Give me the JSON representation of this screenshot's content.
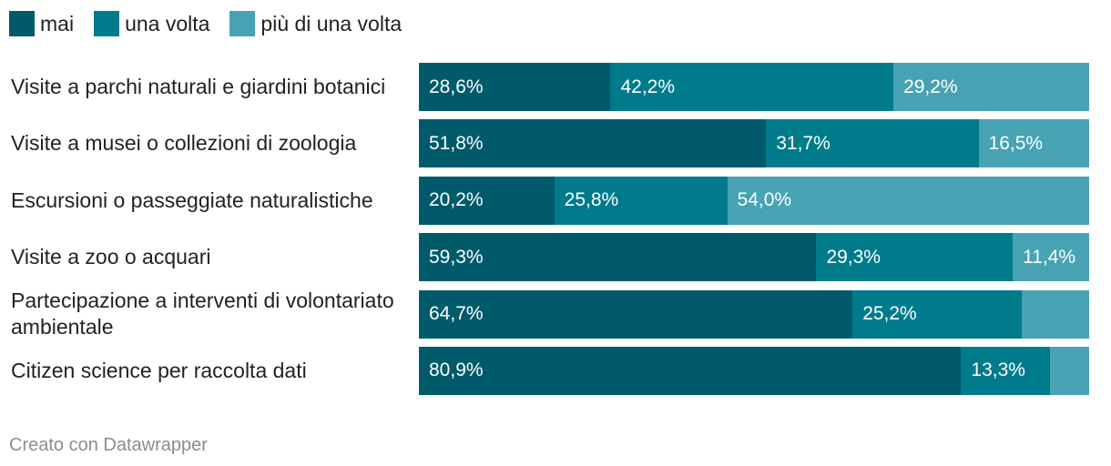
{
  "chart_data": {
    "type": "bar",
    "orientation": "horizontal",
    "stacked": true,
    "legend": "top-left",
    "grid": false,
    "xlim": [
      0,
      100
    ],
    "categories": [
      "Visite a parchi naturali e giardini botanici",
      "Visite a musei o collezioni di zoologia",
      "Escursioni o passeggiate naturalistiche",
      "Visite a zoo o acquari",
      "Partecipazione a interventi di volontariato ambientale",
      "Citizen science per raccolta dati"
    ],
    "series": [
      {
        "name": "mai",
        "color": "#005a6a",
        "values": [
          28.6,
          51.8,
          20.2,
          59.3,
          64.7,
          80.9
        ],
        "labels": [
          "28,6%",
          "51,8%",
          "20,2%",
          "59,3%",
          "64,7%",
          "80,9%"
        ]
      },
      {
        "name": "una volta",
        "color": "#007b8b",
        "values": [
          42.2,
          31.7,
          25.8,
          29.3,
          25.2,
          13.3
        ],
        "labels": [
          "42,2%",
          "31,7%",
          "25,8%",
          "29,3%",
          "25,2%",
          "13,3%"
        ]
      },
      {
        "name": "più di una volta",
        "color": "#47a3b4",
        "values": [
          29.2,
          16.5,
          54.0,
          11.4,
          10.1,
          5.8
        ],
        "labels": [
          "29,2%",
          "16,5%",
          "54,0%",
          "11,4%",
          null,
          null
        ]
      }
    ]
  },
  "footer": {
    "credit": "Creato con Datawrapper"
  }
}
